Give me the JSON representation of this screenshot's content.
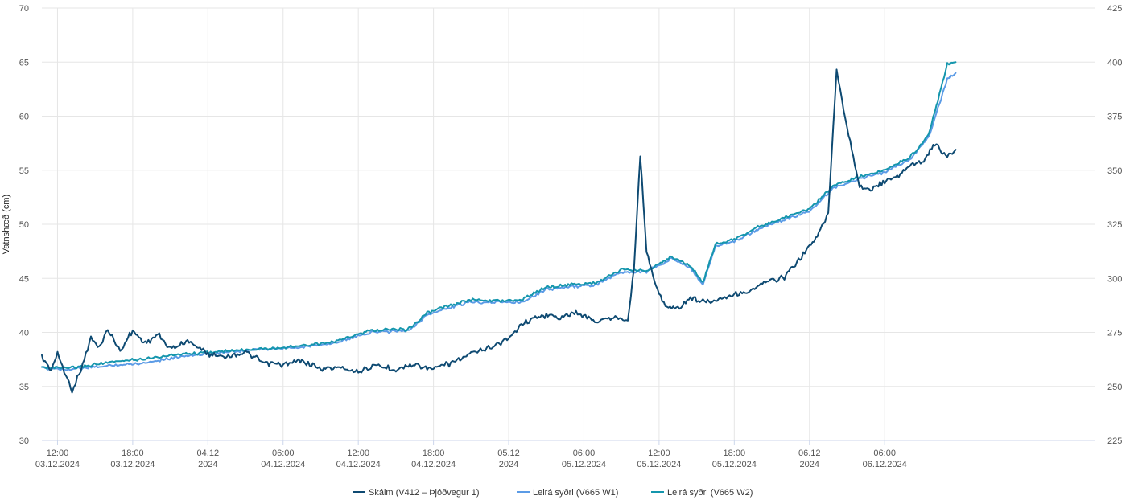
{
  "chart_data": {
    "type": "line",
    "ylabel": "Vatnshæð (cm)",
    "xlabel": "",
    "title": "",
    "x_range": [
      "2024-12-03T10:45",
      "2024-12-06T22:45"
    ],
    "ylim": [
      30,
      70
    ],
    "y2lim": [
      225,
      425
    ],
    "yticks": [
      "30",
      "35",
      "40",
      "45",
      "50",
      "55",
      "60",
      "65",
      "70"
    ],
    "y2ticks": [
      "225",
      "250",
      "275",
      "300",
      "325",
      "350",
      "375",
      "400",
      "425"
    ],
    "xticks": [
      {
        "t": "2024-12-03T12:00",
        "line1": "12:00",
        "line2": "03.12.2024"
      },
      {
        "t": "2024-12-03T18:00",
        "line1": "18:00",
        "line2": "03.12.2024"
      },
      {
        "t": "2024-12-04T00:00",
        "line1": "04.12",
        "line2": "2024"
      },
      {
        "t": "2024-12-04T06:00",
        "line1": "06:00",
        "line2": "04.12.2024"
      },
      {
        "t": "2024-12-04T12:00",
        "line1": "12:00",
        "line2": "04.12.2024"
      },
      {
        "t": "2024-12-04T18:00",
        "line1": "18:00",
        "line2": "04.12.2024"
      },
      {
        "t": "2024-12-05T00:00",
        "line1": "05.12",
        "line2": "2024"
      },
      {
        "t": "2024-12-05T06:00",
        "line1": "06:00",
        "line2": "05.12.2024"
      },
      {
        "t": "2024-12-05T12:00",
        "line1": "12:00",
        "line2": "05.12.2024"
      },
      {
        "t": "2024-12-05T18:00",
        "line1": "18:00",
        "line2": "05.12.2024"
      },
      {
        "t": "2024-12-06T00:00",
        "line1": "06.12",
        "line2": "2024"
      },
      {
        "t": "2024-12-06T06:00",
        "line1": "06:00",
        "line2": "06.12.2024"
      }
    ],
    "grid": true,
    "legend_position": "bottom-center",
    "series": [
      {
        "name": "Skálm (V412 – Þjóðvegur 1)",
        "color": "#0e4a72",
        "axis": "left",
        "points": [
          [
            "2024-12-03T10:45",
            37.7
          ],
          [
            "2024-12-03T11:30",
            36.5
          ],
          [
            "2024-12-03T12:00",
            38.0
          ],
          [
            "2024-12-03T12:40",
            36.0
          ],
          [
            "2024-12-03T13:10",
            34.6
          ],
          [
            "2024-12-03T14:00",
            37.0
          ],
          [
            "2024-12-03T14:40",
            39.5
          ],
          [
            "2024-12-03T15:20",
            38.5
          ],
          [
            "2024-12-03T16:00",
            40.3
          ],
          [
            "2024-12-03T17:00",
            38.3
          ],
          [
            "2024-12-03T18:00",
            40.2
          ],
          [
            "2024-12-03T19:00",
            39.0
          ],
          [
            "2024-12-03T20:00",
            39.8
          ],
          [
            "2024-12-03T21:00",
            38.5
          ],
          [
            "2024-12-03T22:30",
            39.2
          ],
          [
            "2024-12-04T00:00",
            38.0
          ],
          [
            "2024-12-04T01:30",
            37.8
          ],
          [
            "2024-12-04T03:00",
            38.2
          ],
          [
            "2024-12-04T04:30",
            37.2
          ],
          [
            "2024-12-04T06:00",
            37.0
          ],
          [
            "2024-12-04T07:30",
            37.4
          ],
          [
            "2024-12-04T09:00",
            36.6
          ],
          [
            "2024-12-04T10:30",
            36.8
          ],
          [
            "2024-12-04T12:00",
            36.4
          ],
          [
            "2024-12-04T13:30",
            36.9
          ],
          [
            "2024-12-04T15:00",
            36.6
          ],
          [
            "2024-12-04T16:30",
            37.0
          ],
          [
            "2024-12-04T18:00",
            36.6
          ],
          [
            "2024-12-04T19:30",
            37.2
          ],
          [
            "2024-12-04T21:00",
            38.0
          ],
          [
            "2024-12-04T22:30",
            38.6
          ],
          [
            "2024-12-05T00:00",
            39.4
          ],
          [
            "2024-12-05T01:00",
            40.8
          ],
          [
            "2024-12-05T02:30",
            41.6
          ],
          [
            "2024-12-05T04:00",
            41.4
          ],
          [
            "2024-12-05T05:30",
            41.8
          ],
          [
            "2024-12-05T07:00",
            41.0
          ],
          [
            "2024-12-05T08:30",
            41.4
          ],
          [
            "2024-12-05T09:30",
            41.2
          ],
          [
            "2024-12-05T10:00",
            46.0
          ],
          [
            "2024-12-05T10:30",
            56.4
          ],
          [
            "2024-12-05T11:00",
            47.5
          ],
          [
            "2024-12-05T11:45",
            44.2
          ],
          [
            "2024-12-05T12:30",
            42.5
          ],
          [
            "2024-12-05T13:30",
            42.2
          ],
          [
            "2024-12-05T14:30",
            43.2
          ],
          [
            "2024-12-05T16:00",
            42.8
          ],
          [
            "2024-12-05T17:30",
            43.4
          ],
          [
            "2024-12-05T19:00",
            43.7
          ],
          [
            "2024-12-05T20:30",
            44.6
          ],
          [
            "2024-12-05T22:00",
            45.1
          ],
          [
            "2024-12-05T23:30",
            47.2
          ],
          [
            "2024-12-06T00:30",
            48.6
          ],
          [
            "2024-12-06T01:30",
            51.0
          ],
          [
            "2024-12-06T02:10",
            64.3
          ],
          [
            "2024-12-06T03:00",
            59.0
          ],
          [
            "2024-12-06T04:00",
            53.5
          ],
          [
            "2024-12-06T05:00",
            53.2
          ],
          [
            "2024-12-06T06:00",
            54.0
          ],
          [
            "2024-12-06T07:00",
            54.4
          ],
          [
            "2024-12-06T08:00",
            55.4
          ],
          [
            "2024-12-06T09:00",
            55.8
          ],
          [
            "2024-12-06T10:00",
            57.4
          ],
          [
            "2024-12-06T11:00",
            56.3
          ],
          [
            "2024-12-06T11:40",
            56.9
          ]
        ]
      },
      {
        "name": "Leirá syðri (V665 W1)",
        "color": "#5b9be6",
        "axis": "right",
        "points": [
          [
            "2024-12-03T10:45",
            258.5
          ],
          [
            "2024-12-03T13:00",
            258.0
          ],
          [
            "2024-12-03T16:00",
            259.5
          ],
          [
            "2024-12-03T19:00",
            261.0
          ],
          [
            "2024-12-03T22:00",
            264.0
          ],
          [
            "2024-12-04T01:00",
            265.5
          ],
          [
            "2024-12-04T04:00",
            267.0
          ],
          [
            "2024-12-04T07:00",
            268.0
          ],
          [
            "2024-12-04T10:00",
            270.0
          ],
          [
            "2024-12-04T13:00",
            275.0
          ],
          [
            "2024-12-04T16:00",
            276.0
          ],
          [
            "2024-12-04T17:30",
            283.0
          ],
          [
            "2024-12-04T19:00",
            286.0
          ],
          [
            "2024-12-04T21:00",
            289.0
          ],
          [
            "2024-12-04T23:00",
            289.0
          ],
          [
            "2024-12-05T01:00",
            289.0
          ],
          [
            "2024-12-05T03:00",
            295.0
          ],
          [
            "2024-12-05T05:00",
            296.0
          ],
          [
            "2024-12-05T07:00",
            297.0
          ],
          [
            "2024-12-05T09:00",
            303.0
          ],
          [
            "2024-12-05T11:00",
            303.0
          ],
          [
            "2024-12-05T13:00",
            309.0
          ],
          [
            "2024-12-05T14:30",
            305.0
          ],
          [
            "2024-12-05T15:30",
            297.0
          ],
          [
            "2024-12-05T16:30",
            315.0
          ],
          [
            "2024-12-05T18:00",
            317.0
          ],
          [
            "2024-12-05T20:00",
            323.0
          ],
          [
            "2024-12-05T22:00",
            327.0
          ],
          [
            "2024-12-06T00:00",
            331.0
          ],
          [
            "2024-12-06T02:00",
            342.0
          ],
          [
            "2024-12-06T04:00",
            346.0
          ],
          [
            "2024-12-06T06:00",
            349.0
          ],
          [
            "2024-12-06T08:00",
            355.0
          ],
          [
            "2024-12-06T09:30",
            365.0
          ],
          [
            "2024-12-06T11:00",
            392.0
          ],
          [
            "2024-12-06T11:40",
            395.0
          ]
        ]
      },
      {
        "name": "Leirá syðri (V665 W2)",
        "color": "#1596ad",
        "axis": "right",
        "points": [
          [
            "2024-12-03T10:45",
            259.0
          ],
          [
            "2024-12-03T13:00",
            258.5
          ],
          [
            "2024-12-03T16:00",
            261.0
          ],
          [
            "2024-12-03T19:00",
            263.0
          ],
          [
            "2024-12-03T22:00",
            265.0
          ],
          [
            "2024-12-04T01:00",
            266.0
          ],
          [
            "2024-12-04T04:00",
            267.5
          ],
          [
            "2024-12-04T07:00",
            268.5
          ],
          [
            "2024-12-04T10:00",
            270.5
          ],
          [
            "2024-12-04T13:00",
            276.0
          ],
          [
            "2024-12-04T16:00",
            276.5
          ],
          [
            "2024-12-04T17:30",
            284.0
          ],
          [
            "2024-12-04T19:00",
            287.0
          ],
          [
            "2024-12-04T21:00",
            290.0
          ],
          [
            "2024-12-04T23:00",
            289.5
          ],
          [
            "2024-12-05T01:00",
            290.0
          ],
          [
            "2024-12-05T03:00",
            296.0
          ],
          [
            "2024-12-05T05:00",
            297.0
          ],
          [
            "2024-12-05T07:00",
            298.0
          ],
          [
            "2024-12-05T09:00",
            304.0
          ],
          [
            "2024-12-05T11:00",
            303.5
          ],
          [
            "2024-12-05T13:00",
            310.0
          ],
          [
            "2024-12-05T14:30",
            306.0
          ],
          [
            "2024-12-05T15:30",
            298.0
          ],
          [
            "2024-12-05T16:30",
            316.0
          ],
          [
            "2024-12-05T18:00",
            318.0
          ],
          [
            "2024-12-05T20:00",
            324.0
          ],
          [
            "2024-12-05T22:00",
            328.0
          ],
          [
            "2024-12-06T00:00",
            332.0
          ],
          [
            "2024-12-06T02:00",
            343.0
          ],
          [
            "2024-12-06T04:00",
            347.0
          ],
          [
            "2024-12-06T06:00",
            350.0
          ],
          [
            "2024-12-06T08:00",
            356.0
          ],
          [
            "2024-12-06T09:30",
            366.0
          ],
          [
            "2024-12-06T11:00",
            399.0
          ],
          [
            "2024-12-06T11:40",
            400.0
          ]
        ]
      }
    ]
  }
}
